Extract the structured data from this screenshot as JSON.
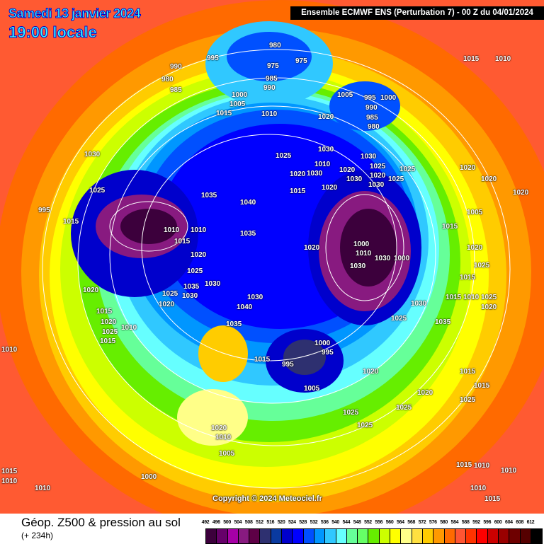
{
  "header": {
    "date": "Samedi 13 janvier 2024",
    "time": "19:00 locale",
    "run_info": "Ensemble ECMWF ENS  (Perturbation 7)  -  00 Z du 04/01/2024"
  },
  "map": {
    "copyright": "Copyright © 2024 Meteociel.fr",
    "pressure_labels": [
      "980",
      "975",
      "975",
      "990",
      "980",
      "985",
      "995",
      "985",
      "990",
      "1000",
      "1005",
      "1015",
      "1010",
      "1005",
      "995",
      "1000",
      "990",
      "985",
      "980",
      "1020",
      "1025",
      "1020",
      "1030",
      "1030",
      "1025",
      "1020",
      "1025",
      "1015",
      "1020",
      "1030",
      "1010",
      "1020",
      "1030",
      "1030",
      "1025",
      "995",
      "1015",
      "1025",
      "1030",
      "1035",
      "1040",
      "1010",
      "1010",
      "1015",
      "1020",
      "1025",
      "1035",
      "1035",
      "1030",
      "1030",
      "1020",
      "1025",
      "1040",
      "1030",
      "1035",
      "1015",
      "1020",
      "1025",
      "1020",
      "1015",
      "1010",
      "1000",
      "1030",
      "1030",
      "1000",
      "1010",
      "1020",
      "1025",
      "1030",
      "1035",
      "1015",
      "995",
      "1000",
      "995",
      "1005",
      "1020",
      "1025",
      "1025",
      "1020",
      "1025",
      "1025",
      "1020",
      "1010",
      "1005",
      "1000",
      "1010",
      "1015",
      "1010",
      "1010",
      "1015",
      "1010",
      "1010",
      "1010",
      "1015",
      "1010",
      "1015",
      "1020",
      "1020",
      "1020",
      "1020",
      "1025",
      "1015",
      "1015",
      "1005",
      "1015",
      "1010",
      "1025",
      "1015",
      "1015",
      "1020"
    ],
    "legend_colors": [
      "#3c003c",
      "#66006a",
      "#a600a6",
      "#881a80",
      "#5e0046",
      "#2e3070",
      "#0a3aa0",
      "#0000cc",
      "#0000ff",
      "#0050ff",
      "#0096ff",
      "#30c8ff",
      "#66ffff",
      "#66ff99",
      "#66ff66",
      "#66ee00",
      "#ccff00",
      "#ffff00",
      "#ffff88",
      "#ffe040",
      "#ffcc00",
      "#ff9900",
      "#ff6a00",
      "#ff5533",
      "#ff3300",
      "#ff0000",
      "#cc0000",
      "#990000",
      "#6e0000",
      "#550000",
      "#000000"
    ]
  },
  "footer": {
    "title": "Géop. Z500 & pression au sol",
    "lead_time": "(+ 234h)",
    "scale_labels": [
      "492",
      "496",
      "500",
      "504",
      "508",
      "512",
      "516",
      "520",
      "524",
      "528",
      "532",
      "536",
      "540",
      "544",
      "548",
      "552",
      "556",
      "560",
      "564",
      "568",
      "572",
      "576",
      "580",
      "584",
      "588",
      "592",
      "596",
      "600",
      "604",
      "608",
      "612"
    ]
  }
}
